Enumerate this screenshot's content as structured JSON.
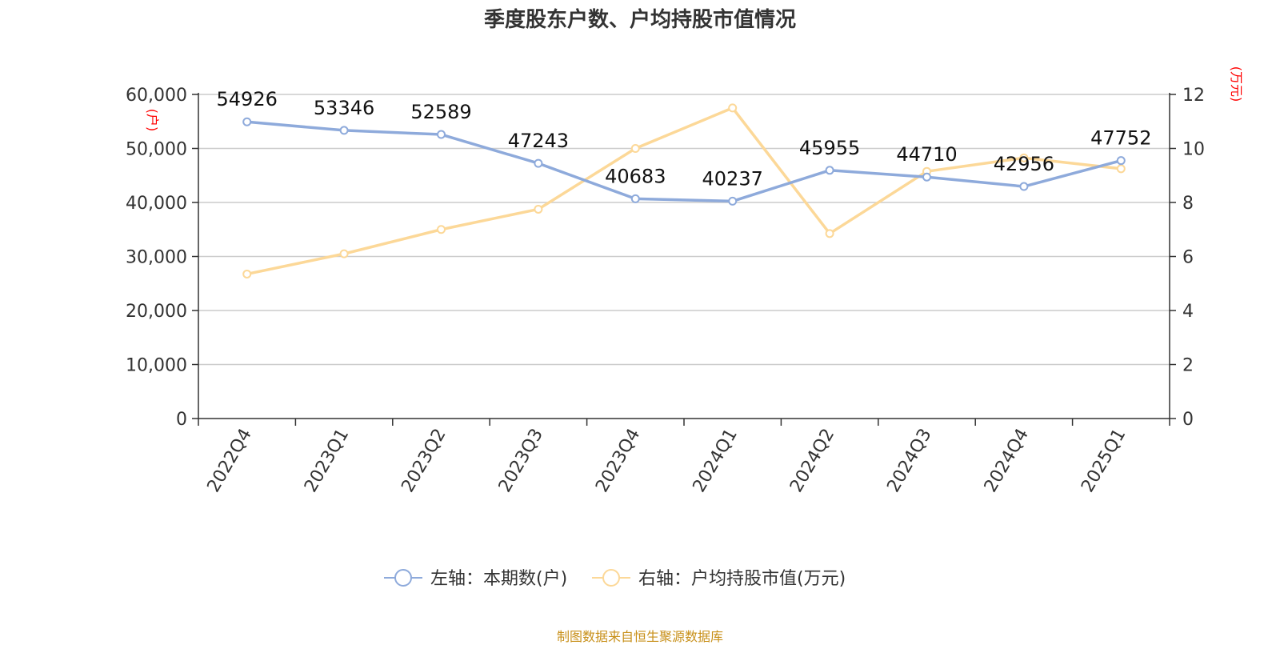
{
  "chart_data": {
    "type": "line",
    "title": "季度股东户数、户均持股市值情况",
    "categories": [
      "2022Q4",
      "2023Q1",
      "2023Q2",
      "2023Q3",
      "2023Q4",
      "2024Q1",
      "2024Q2",
      "2024Q3",
      "2024Q4",
      "2025Q1"
    ],
    "series": [
      {
        "name": "左轴：本期数(户)",
        "axis": "left",
        "color": "#8eaadb",
        "values": [
          54926,
          53346,
          52589,
          47243,
          40683,
          40237,
          45955,
          44710,
          42956,
          47752
        ],
        "labels": [
          "54926",
          "53346",
          "52589",
          "47243",
          "40683",
          "40237",
          "45955",
          "44710",
          "42956",
          "47752"
        ]
      },
      {
        "name": "右轴：户均持股市值(万元)",
        "axis": "right",
        "color": "#fcd898",
        "values": [
          5.35,
          6.1,
          7.0,
          7.75,
          10.0,
          11.5,
          6.85,
          9.15,
          9.65,
          9.25
        ]
      }
    ],
    "left_axis": {
      "unit": "(户)",
      "ylim": [
        0,
        60000
      ],
      "ticks": [
        0,
        10000,
        20000,
        30000,
        40000,
        50000,
        60000
      ],
      "tick_labels": [
        "0",
        "10,000",
        "20,000",
        "30,000",
        "40,000",
        "50,000",
        "60,000"
      ]
    },
    "right_axis": {
      "unit": "(万元)",
      "ylim": [
        0,
        12
      ],
      "ticks": [
        0,
        2,
        4,
        6,
        8,
        10,
        12
      ],
      "tick_labels": [
        "0",
        "2",
        "4",
        "6",
        "8",
        "10",
        "12"
      ]
    },
    "grid": true,
    "legend_position": "bottom-center",
    "source": "制图数据来自恒生聚源数据库"
  }
}
